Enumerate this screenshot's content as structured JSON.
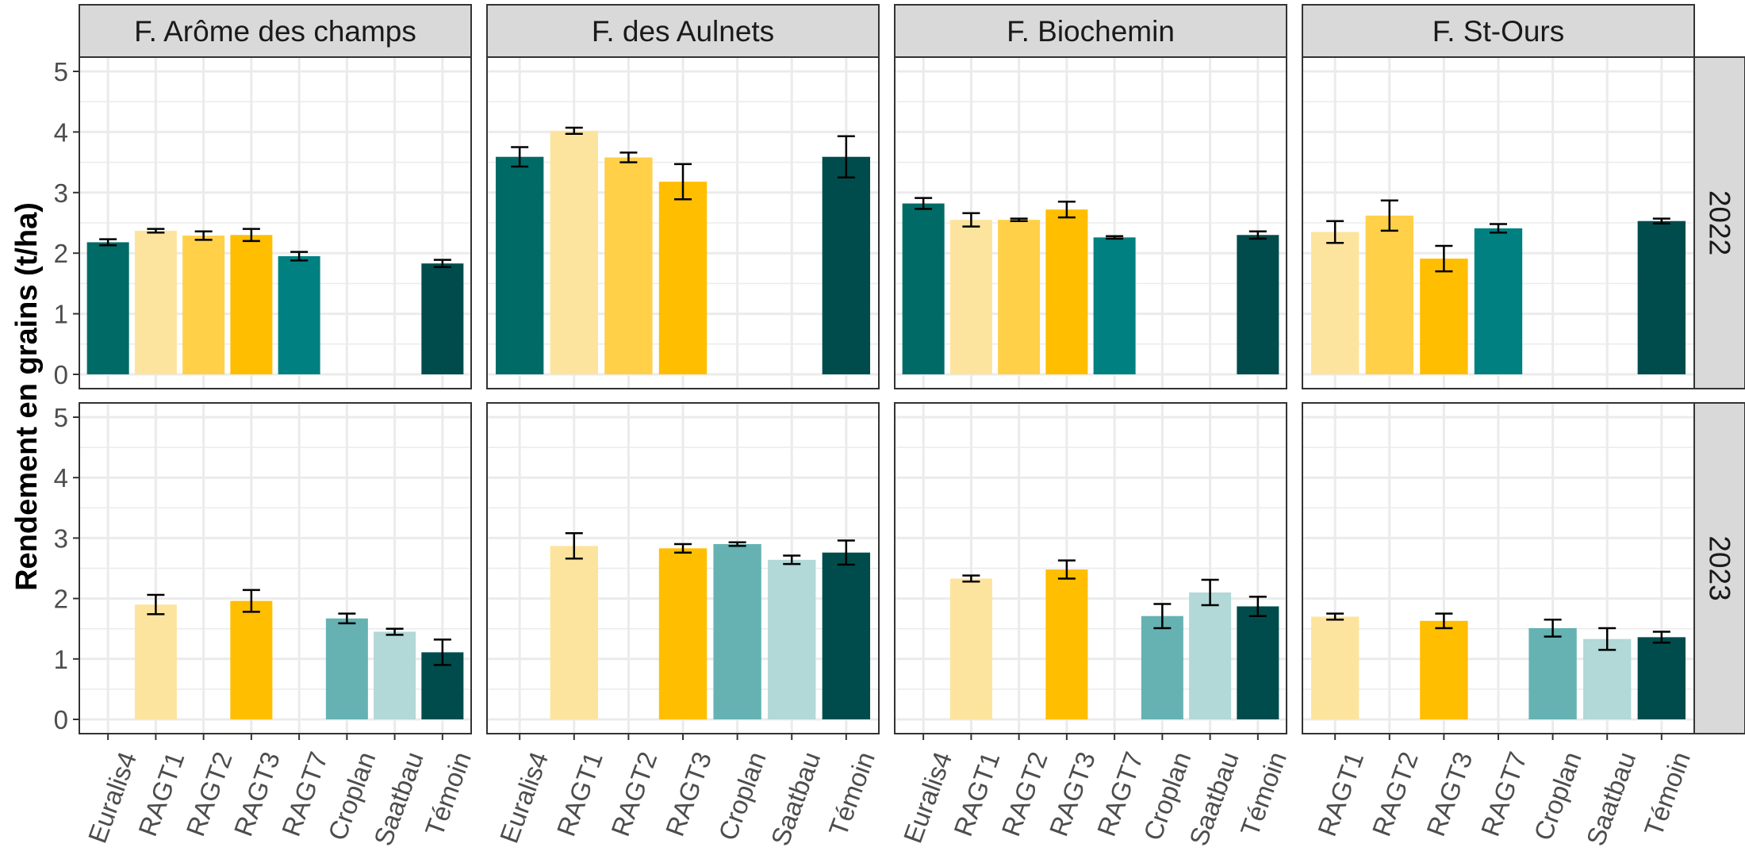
{
  "ylabel": "Rendement en grains (t/ha)",
  "years": [
    "2022",
    "2023"
  ],
  "farms": [
    "F. Arôme des champs",
    "F. des Aulnets",
    "F. Biochemin",
    "F. St-Ours"
  ],
  "colors": {
    "Euralis4": "#006b66",
    "RAGT1": "#fde49e",
    "RAGT2": "#ffd048",
    "RAGT3": "#ffbe00",
    "RAGT7": "#008080",
    "Croplan": "#66b2b2",
    "Saatbau": "#b2d8d8",
    "Témoin": "#004c4c",
    "strip_bg": "#d9d9d9",
    "grid": "#ebebeb",
    "border": "#333333"
  },
  "chart_data": {
    "type": "bar",
    "ylim": [
      0,
      5
    ],
    "yticks": [
      0,
      1,
      2,
      3,
      4,
      5
    ],
    "grid": true,
    "panels": [
      {
        "farm": "F. Arôme des champs",
        "categories": [
          "Euralis4",
          "RAGT1",
          "RAGT2",
          "RAGT3",
          "RAGT7",
          "Croplan",
          "Saatbau",
          "Témoin"
        ],
        "years": [
          {
            "year": "2022",
            "bars": [
              {
                "cultivar": "Euralis4",
                "value": 2.18,
                "err": 0.05
              },
              {
                "cultivar": "RAGT1",
                "value": 2.37,
                "err": 0.03
              },
              {
                "cultivar": "RAGT2",
                "value": 2.29,
                "err": 0.07
              },
              {
                "cultivar": "RAGT3",
                "value": 2.3,
                "err": 0.1
              },
              {
                "cultivar": "RAGT7",
                "value": 1.95,
                "err": 0.07
              },
              {
                "cultivar": "Témoin",
                "value": 1.83,
                "err": 0.06
              }
            ]
          },
          {
            "year": "2023",
            "bars": [
              {
                "cultivar": "RAGT1",
                "value": 1.9,
                "err": 0.16
              },
              {
                "cultivar": "RAGT3",
                "value": 1.96,
                "err": 0.18
              },
              {
                "cultivar": "Croplan",
                "value": 1.67,
                "err": 0.08
              },
              {
                "cultivar": "Saatbau",
                "value": 1.45,
                "err": 0.05
              },
              {
                "cultivar": "Témoin",
                "value": 1.11,
                "err": 0.21
              }
            ]
          }
        ]
      },
      {
        "farm": "F. des Aulnets",
        "categories": [
          "Euralis4",
          "RAGT1",
          "RAGT2",
          "RAGT3",
          "Croplan",
          "Saatbau",
          "Témoin"
        ],
        "years": [
          {
            "year": "2022",
            "bars": [
              {
                "cultivar": "Euralis4",
                "value": 3.59,
                "err": 0.16
              },
              {
                "cultivar": "RAGT1",
                "value": 4.02,
                "err": 0.05
              },
              {
                "cultivar": "RAGT2",
                "value": 3.58,
                "err": 0.08
              },
              {
                "cultivar": "RAGT3",
                "value": 3.18,
                "err": 0.29
              },
              {
                "cultivar": "Témoin",
                "value": 3.59,
                "err": 0.34
              }
            ]
          },
          {
            "year": "2023",
            "bars": [
              {
                "cultivar": "RAGT1",
                "value": 2.87,
                "err": 0.21
              },
              {
                "cultivar": "RAGT3",
                "value": 2.83,
                "err": 0.07
              },
              {
                "cultivar": "Croplan",
                "value": 2.9,
                "err": 0.03
              },
              {
                "cultivar": "Saatbau",
                "value": 2.64,
                "err": 0.07
              },
              {
                "cultivar": "Témoin",
                "value": 2.76,
                "err": 0.2
              }
            ]
          }
        ]
      },
      {
        "farm": "F. Biochemin",
        "categories": [
          "Euralis4",
          "RAGT1",
          "RAGT2",
          "RAGT3",
          "RAGT7",
          "Croplan",
          "Saatbau",
          "Témoin"
        ],
        "years": [
          {
            "year": "2022",
            "bars": [
              {
                "cultivar": "Euralis4",
                "value": 2.82,
                "err": 0.09
              },
              {
                "cultivar": "RAGT1",
                "value": 2.55,
                "err": 0.11
              },
              {
                "cultivar": "RAGT2",
                "value": 2.55,
                "err": 0.02
              },
              {
                "cultivar": "RAGT3",
                "value": 2.72,
                "err": 0.13
              },
              {
                "cultivar": "RAGT7",
                "value": 2.26,
                "err": 0.02
              },
              {
                "cultivar": "Témoin",
                "value": 2.3,
                "err": 0.06
              }
            ]
          },
          {
            "year": "2023",
            "bars": [
              {
                "cultivar": "RAGT1",
                "value": 2.33,
                "err": 0.05
              },
              {
                "cultivar": "RAGT3",
                "value": 2.48,
                "err": 0.15
              },
              {
                "cultivar": "Croplan",
                "value": 1.71,
                "err": 0.2
              },
              {
                "cultivar": "Saatbau",
                "value": 2.1,
                "err": 0.21
              },
              {
                "cultivar": "Témoin",
                "value": 1.87,
                "err": 0.16
              }
            ]
          }
        ]
      },
      {
        "farm": "F. St-Ours",
        "categories": [
          "RAGT1",
          "RAGT2",
          "RAGT3",
          "RAGT7",
          "Croplan",
          "Saatbau",
          "Témoin"
        ],
        "years": [
          {
            "year": "2022",
            "bars": [
              {
                "cultivar": "RAGT1",
                "value": 2.35,
                "err": 0.18
              },
              {
                "cultivar": "RAGT2",
                "value": 2.62,
                "err": 0.25
              },
              {
                "cultivar": "RAGT3",
                "value": 1.91,
                "err": 0.21
              },
              {
                "cultivar": "RAGT7",
                "value": 2.41,
                "err": 0.07
              },
              {
                "cultivar": "Témoin",
                "value": 2.53,
                "err": 0.04
              }
            ]
          },
          {
            "year": "2023",
            "bars": [
              {
                "cultivar": "RAGT1",
                "value": 1.7,
                "err": 0.05
              },
              {
                "cultivar": "RAGT3",
                "value": 1.63,
                "err": 0.12
              },
              {
                "cultivar": "Croplan",
                "value": 1.51,
                "err": 0.14
              },
              {
                "cultivar": "Saatbau",
                "value": 1.33,
                "err": 0.18
              },
              {
                "cultivar": "Témoin",
                "value": 1.36,
                "err": 0.09
              }
            ]
          }
        ]
      }
    ]
  }
}
